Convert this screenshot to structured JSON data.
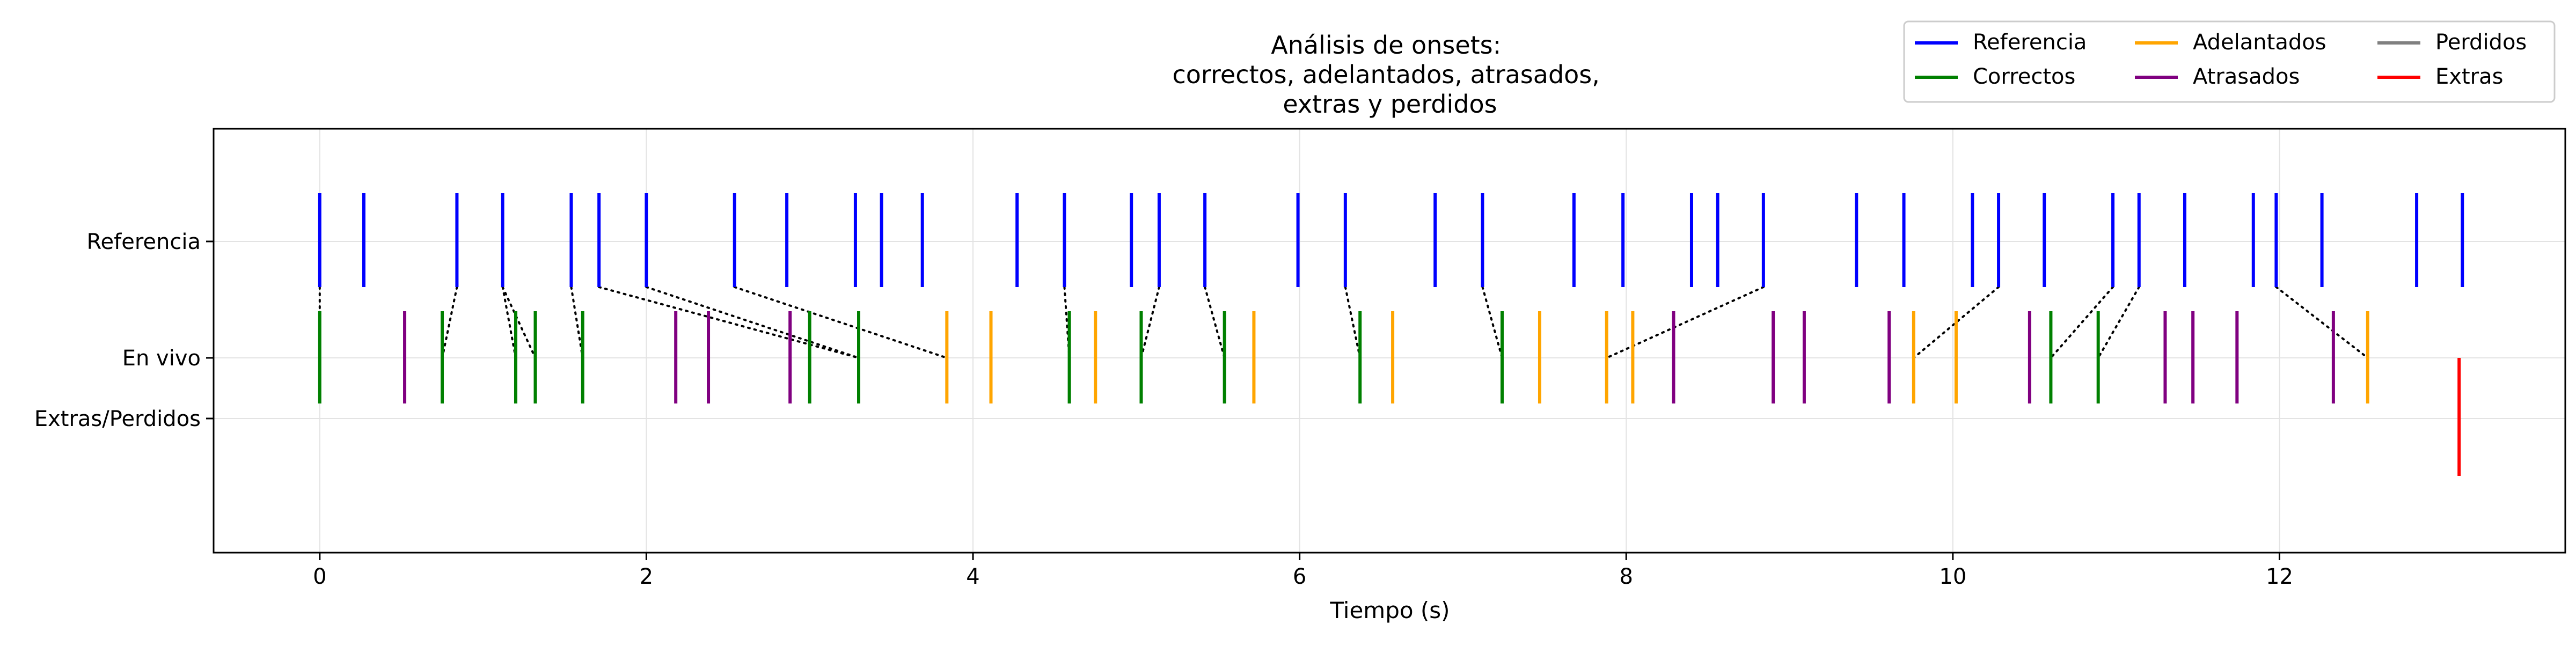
{
  "chart_data": {
    "type": "event-plot",
    "title_lines": [
      "Análisis de onsets:",
      "correctos, adelantados, atrasados,",
      "extras y perdidos"
    ],
    "xlabel": "Tiempo (s)",
    "ylabel": "",
    "xlim": [
      -0.65,
      13.75
    ],
    "x_ticks": [
      0,
      2,
      4,
      6,
      8,
      10,
      12
    ],
    "y_ticks": [
      "Referencia",
      "En vivo",
      "Extras/Perdidos"
    ],
    "grid": true,
    "legend_position": "top-right",
    "colors": {
      "Referencia": "#0000ff",
      "Correctos": "#008000",
      "Adelantados": "#ffa500",
      "Atrasados": "#800080",
      "Perdidos": "#808080",
      "Extras": "#ff0000",
      "matches": "#000000"
    },
    "legend": [
      {
        "label": "Referencia",
        "color": "#0000ff"
      },
      {
        "label": "Correctos",
        "color": "#008000"
      },
      {
        "label": "Adelantados",
        "color": "#ffa500"
      },
      {
        "label": "Atrasados",
        "color": "#800080"
      },
      {
        "label": "Perdidos",
        "color": "#808080"
      },
      {
        "label": "Extras",
        "color": "#ff0000"
      }
    ],
    "series": {
      "Referencia": [
        0.0,
        0.27,
        0.84,
        1.12,
        1.54,
        1.71,
        2.0,
        2.54,
        2.86,
        3.28,
        3.44,
        3.69,
        4.27,
        4.56,
        4.97,
        5.14,
        5.42,
        5.99,
        6.28,
        6.83,
        7.12,
        7.68,
        7.98,
        8.4,
        8.56,
        8.84,
        9.41,
        9.7,
        10.12,
        10.28,
        10.56,
        10.98,
        11.14,
        11.42,
        11.84,
        11.98,
        12.26,
        12.84,
        13.12
      ],
      "Correctos": [
        0.0,
        0.75,
        1.2,
        1.32,
        1.61,
        3.0,
        3.3,
        4.59,
        5.03,
        5.54,
        6.37,
        7.24,
        10.6,
        10.89
      ],
      "Adelantados": [
        3.84,
        4.11,
        4.75,
        5.72,
        6.57,
        7.47,
        7.88,
        8.04,
        9.76,
        10.02,
        12.54
      ],
      "Atrasados": [
        0.52,
        2.18,
        2.38,
        2.88,
        8.29,
        8.9,
        9.09,
        9.61,
        10.47,
        11.3,
        11.47,
        11.74,
        12.33
      ],
      "Perdidos": [],
      "Extras": [
        13.1
      ]
    },
    "matches": [
      [
        0.0,
        0.0
      ],
      [
        0.84,
        0.75
      ],
      [
        1.12,
        1.2
      ],
      [
        1.12,
        1.32
      ],
      [
        1.54,
        1.61
      ],
      [
        1.71,
        3.3
      ],
      [
        2.0,
        3.3
      ],
      [
        2.54,
        3.84
      ],
      [
        4.56,
        4.59
      ],
      [
        5.14,
        5.03
      ],
      [
        5.42,
        5.54
      ],
      [
        6.28,
        6.37
      ],
      [
        7.12,
        7.24
      ],
      [
        8.84,
        7.88
      ],
      [
        10.28,
        9.76
      ],
      [
        10.98,
        10.6
      ],
      [
        11.14,
        10.89
      ],
      [
        11.98,
        12.54
      ]
    ]
  }
}
